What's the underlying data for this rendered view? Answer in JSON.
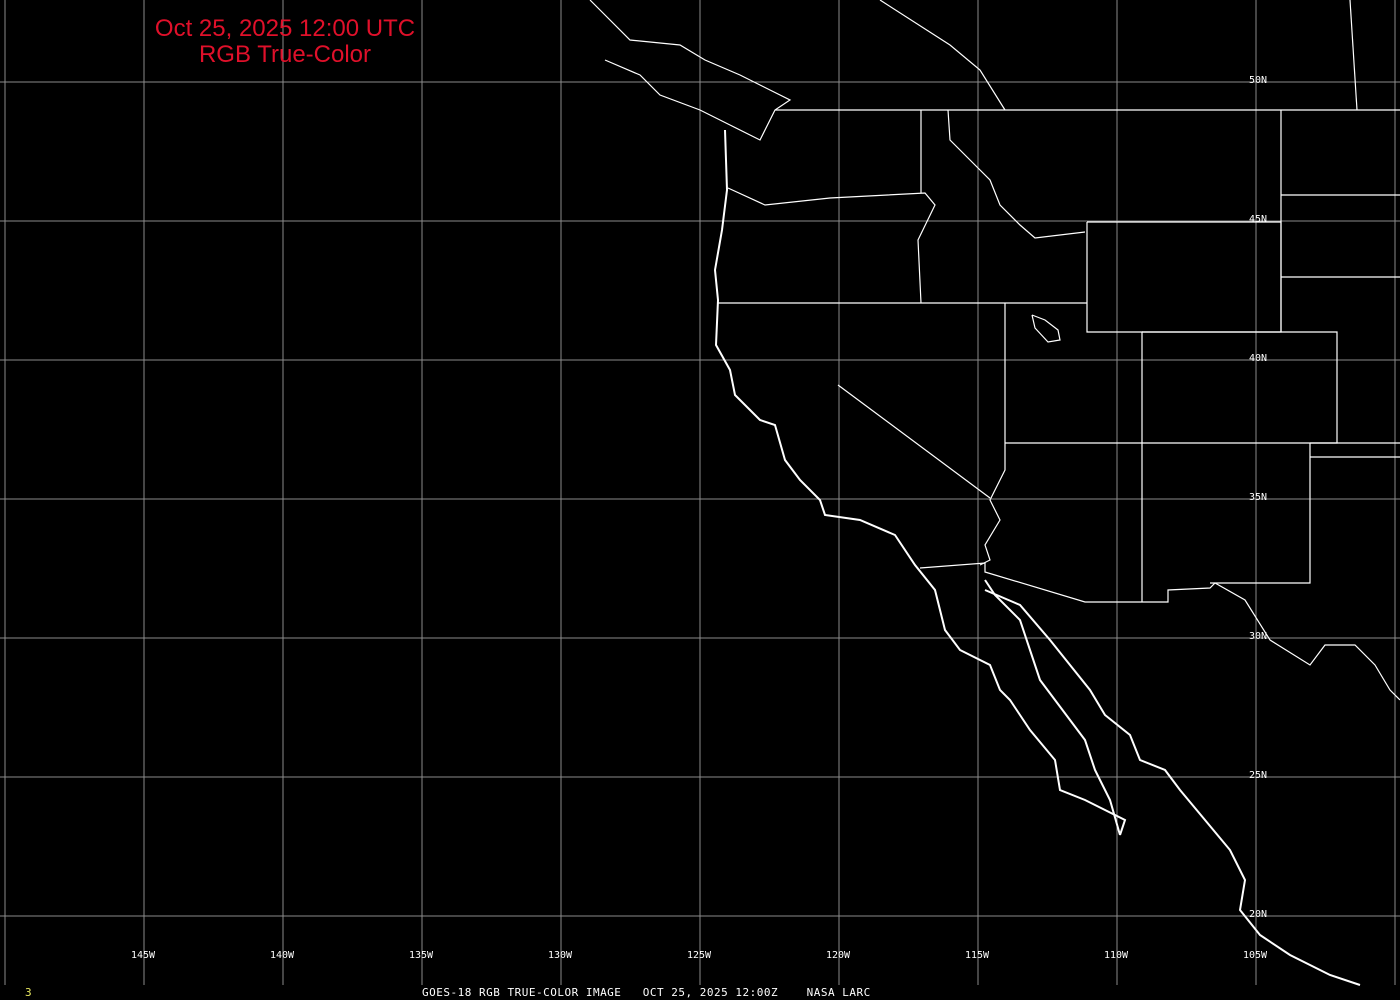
{
  "title": {
    "line1": "Oct 25, 2025 12:00 UTC",
    "line2": "RGB True-Color",
    "color": "#e0102a"
  },
  "lon_labels": [
    "145W",
    "140W",
    "135W",
    "130W",
    "125W",
    "120W",
    "115W",
    "110W",
    "105W"
  ],
  "lat_labels": [
    "50N",
    "45N",
    "40N",
    "35N",
    "30N",
    "25N",
    "20N"
  ],
  "footer": {
    "frame": "3",
    "caption": "GOES-18 RGB TRUE-COLOR IMAGE   OCT 25, 2025 12:00Z    NASA LARC"
  },
  "map": {
    "background": "#000000",
    "grid_color": "#8a8a8a",
    "outline_color": "#ffffff",
    "frame_color": "#e8e860"
  }
}
